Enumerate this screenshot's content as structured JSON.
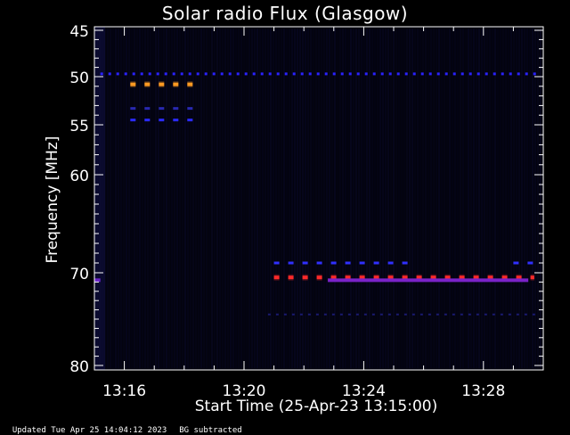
{
  "chart_data": {
    "type": "heatmap",
    "title": "Solar radio Flux (Glasgow)",
    "xlabel": "Start Time (25-Apr-23 13:15:00)",
    "ylabel": "Frequency [MHz]",
    "x_tick_labels": [
      "13:16",
      "13:20",
      "13:24",
      "13:28"
    ],
    "x_tick_minutes": [
      1,
      5,
      9,
      13
    ],
    "xlim_minutes": [
      0,
      15
    ],
    "y_ticks": [
      45,
      50,
      55,
      60,
      70,
      80
    ],
    "ylim": [
      45,
      80
    ],
    "y_scale": "nonlinear",
    "grid": false,
    "legend": "none",
    "features": [
      {
        "freq": 49.7,
        "x_range": [
          0.2,
          14.8
        ],
        "color": "#2a22ff",
        "style": "dotted",
        "intensity": "medium"
      },
      {
        "freq": 50.8,
        "x_range": [
          1.2,
          3.5
        ],
        "color": "#ff9a22",
        "style": "dashed",
        "intensity": "high"
      },
      {
        "freq": 53.3,
        "x_range": [
          1.2,
          3.5
        ],
        "color": "#2828b0",
        "style": "dashed",
        "intensity": "low"
      },
      {
        "freq": 54.5,
        "x_range": [
          1.2,
          3.5
        ],
        "color": "#2a2aff",
        "style": "dashed",
        "intensity": "medium"
      },
      {
        "freq": 69.0,
        "x_range": [
          6.0,
          10.7
        ],
        "color": "#3030ff",
        "style": "dashed",
        "intensity": "medium"
      },
      {
        "freq": 70.5,
        "x_range": [
          6.0,
          14.7
        ],
        "color": "#ff2a2a",
        "style": "dashed",
        "intensity": "high"
      },
      {
        "freq": 70.8,
        "x_range": [
          7.8,
          14.5
        ],
        "color": "#7a22c8",
        "style": "solid",
        "intensity": "medium"
      },
      {
        "freq": 74.5,
        "x_range": [
          5.8,
          14.8
        ],
        "color": "#1a1a70",
        "style": "dotted",
        "intensity": "low"
      },
      {
        "freq": 69.0,
        "x_range": [
          14.0,
          14.7
        ],
        "color": "#3030ff",
        "style": "dashed",
        "intensity": "medium"
      },
      {
        "freq": 70.8,
        "x_range": [
          0.0,
          0.2
        ],
        "color": "#6a22c8",
        "style": "solid",
        "intensity": "medium"
      }
    ]
  },
  "footer": {
    "updated": "Updated Tue Apr 25 14:04:12 2023",
    "bg_note": "BG subtracted"
  }
}
